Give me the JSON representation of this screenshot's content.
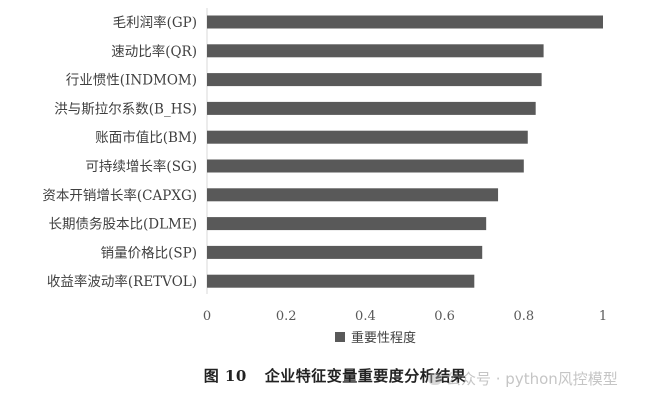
{
  "chart_data": {
    "type": "bar",
    "orientation": "horizontal",
    "categories": [
      "毛利润率(GP)",
      "速动比率(QR)",
      "行业惯性(INDMOM)",
      "洪与斯拉尔系数(B_HS)",
      "账面市值比(BM)",
      "可持续增长率(SG)",
      "资本开销增长率(CAPXG)",
      "长期债务股本比(DLME)",
      "销量价格比(SP)",
      "收益率波动率(RETVOL)"
    ],
    "series": [
      {
        "name": "重要性程度",
        "values": [
          1.0,
          0.85,
          0.845,
          0.83,
          0.81,
          0.8,
          0.735,
          0.705,
          0.695,
          0.675
        ]
      }
    ],
    "xticks": [
      "0",
      "0.2",
      "0.4",
      "0.6",
      "0.8",
      "1"
    ],
    "xlim": [
      0,
      1
    ],
    "grid": false,
    "legend_position": "bottom",
    "bar_color": "#595959"
  },
  "caption": {
    "figure_number": "图 10",
    "text": "企业特征变量重要度分析结果"
  },
  "watermark": {
    "text": "公众号 · python风控模型"
  }
}
